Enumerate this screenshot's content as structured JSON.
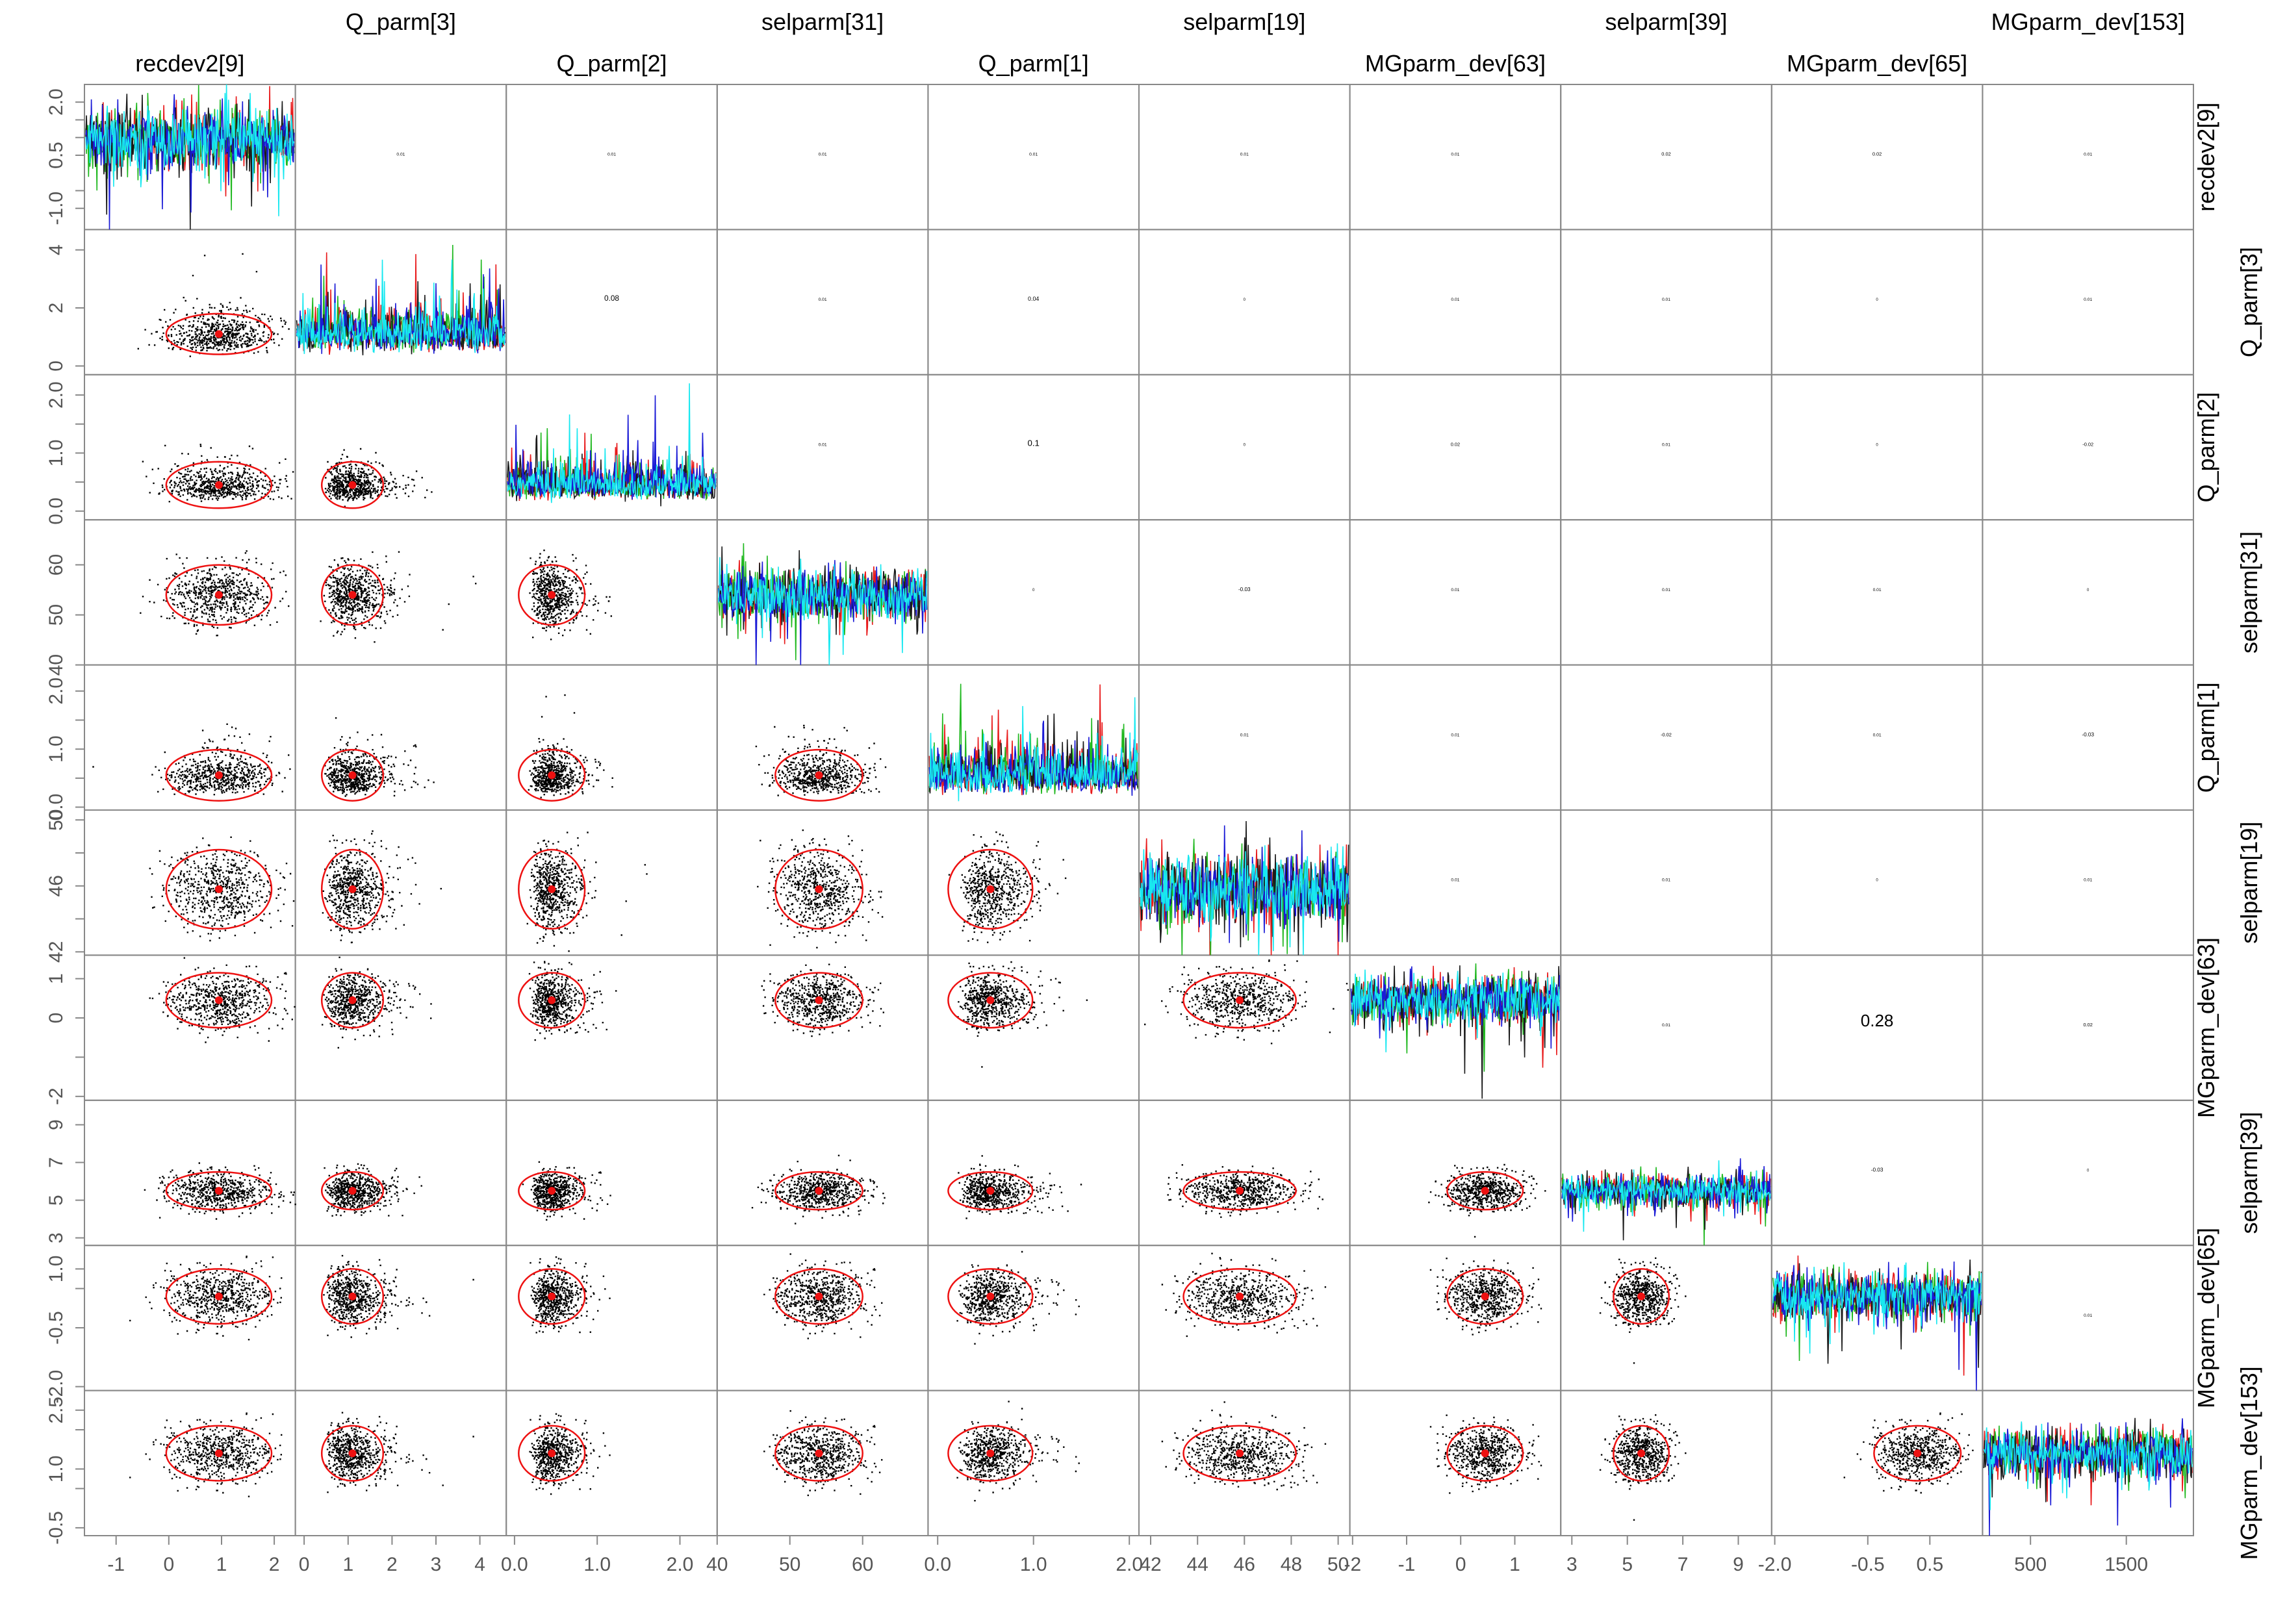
{
  "chart_data": {
    "type": "scatter",
    "title": "",
    "variables": [
      "recdev2[9]",
      "Q_parm[3]",
      "Q_parm[2]",
      "selparm[31]",
      "Q_parm[1]",
      "selparm[19]",
      "MGparm_dev[63]",
      "selparm[39]",
      "MGparm_dev[65]",
      "MGparm_dev[153]"
    ],
    "top_labels_upper_row": [
      "Q_parm[3]",
      "selparm[31]",
      "selparm[19]",
      "selparm[39]",
      "MGparm_dev[153]"
    ],
    "top_labels_lower_row": [
      "recdev2[9]",
      "Q_parm[2]",
      "Q_parm[1]",
      "MGparm_dev[63]",
      "MGparm_dev[65]"
    ],
    "right_labels": [
      "recdev2[9]",
      "Q_parm[3]",
      "Q_parm[2]",
      "selparm[31]",
      "Q_parm[1]",
      "selparm[19]",
      "MGparm_dev[63]",
      "selparm[39]",
      "MGparm_dev[65]",
      "MGparm_dev[153]"
    ],
    "x_axis_ticks": [
      {
        "ticks": [
          "-1",
          "0",
          "1",
          "2"
        ],
        "values": [
          -1,
          0,
          1,
          2
        ],
        "range": [
          -1.6,
          2.4
        ]
      },
      {
        "ticks": [
          "0",
          "1",
          "2",
          "3",
          "4"
        ],
        "values": [
          0,
          1,
          2,
          3,
          4
        ],
        "range": [
          -0.2,
          4.6
        ]
      },
      {
        "ticks": [
          "0.0",
          "1.0",
          "2.0"
        ],
        "values": [
          0,
          1,
          2
        ],
        "range": [
          -0.1,
          2.45
        ]
      },
      {
        "ticks": [
          "40",
          "50",
          "60"
        ],
        "values": [
          40,
          50,
          60
        ],
        "range": [
          40,
          69
        ]
      },
      {
        "ticks": [
          "0.0",
          "1.0",
          "2.0"
        ],
        "values": [
          0,
          1,
          2
        ],
        "range": [
          -0.1,
          2.1
        ]
      },
      {
        "ticks": [
          "42",
          "44",
          "46",
          "48",
          "50"
        ],
        "values": [
          42,
          44,
          46,
          48,
          50
        ],
        "range": [
          41.5,
          50.5
        ]
      },
      {
        "ticks": [
          "-2",
          "-1",
          "0",
          "1"
        ],
        "values": [
          -2,
          -1,
          0,
          1
        ],
        "range": [
          -2.05,
          1.85
        ]
      },
      {
        "ticks": [
          "3",
          "5",
          "7",
          "9"
        ],
        "values": [
          3,
          5,
          7,
          9
        ],
        "range": [
          2.6,
          10.2
        ]
      },
      {
        "ticks": [
          "-2.0",
          "-0.5",
          "0.5"
        ],
        "values": [
          -2,
          -0.5,
          0.5
        ],
        "range": [
          -2.05,
          1.35
        ]
      },
      {
        "ticks": [
          "500",
          "1500"
        ],
        "values": [
          500,
          1500
        ],
        "range": [
          0,
          2200
        ]
      }
    ],
    "y_axis_ticks": [
      {
        "ticks": [
          "-1.0",
          "0.5",
          "2.0"
        ],
        "values": [
          -1,
          0.5,
          2
        ],
        "minor": [
          -0.5,
          1.0,
          1.5
        ],
        "range": [
          -1.6,
          2.5
        ]
      },
      {
        "ticks": [
          "0",
          "2",
          "4"
        ],
        "values": [
          0,
          2,
          4
        ],
        "range": [
          -0.3,
          4.7
        ]
      },
      {
        "ticks": [
          "0.0",
          "1.0",
          "2.0"
        ],
        "values": [
          0,
          1,
          2
        ],
        "minor": [
          0.5,
          1.5
        ],
        "range": [
          -0.15,
          2.35
        ]
      },
      {
        "ticks": [
          "40",
          "50",
          "60"
        ],
        "values": [
          40,
          50,
          60
        ],
        "range": [
          40,
          69
        ]
      },
      {
        "ticks": [
          "0.0",
          "1.0",
          "2.0"
        ],
        "values": [
          0,
          1,
          2
        ],
        "minor": [
          0.5,
          1.5
        ],
        "range": [
          -0.05,
          2.45
        ]
      },
      {
        "ticks": [
          "42",
          "46",
          "50"
        ],
        "values": [
          42,
          46,
          50
        ],
        "minor": [
          44,
          48
        ],
        "range": [
          41.8,
          50.6
        ]
      },
      {
        "ticks": [
          "-2",
          "0",
          "1"
        ],
        "values": [
          -2,
          0,
          1
        ],
        "minor": [
          -1
        ],
        "range": [
          -2.1,
          1.6
        ]
      },
      {
        "ticks": [
          "3",
          "5",
          "7",
          "9"
        ],
        "values": [
          3,
          5,
          7,
          9
        ],
        "range": [
          2.6,
          10.3
        ]
      },
      {
        "ticks": [
          "-2.0",
          "-0.5",
          "1.0"
        ],
        "values": [
          -2,
          -0.5,
          1
        ],
        "minor": [
          0.5
        ],
        "range": [
          -2.1,
          1.6
        ]
      },
      {
        "ticks": [
          "-0.5",
          "1.0",
          "2.5"
        ],
        "values": [
          -0.5,
          1,
          2.5
        ],
        "minor": [
          0.5,
          2.0
        ],
        "range": [
          -0.7,
          3.0
        ]
      }
    ],
    "variable_stats": [
      {
        "name": "recdev2[9]",
        "mean": 0.95,
        "sd": 0.5
      },
      {
        "name": "Q_parm[3]",
        "mean": 1.1,
        "sd": 0.35
      },
      {
        "name": "Q_parm[2]",
        "mean": 0.45,
        "sd": 0.2
      },
      {
        "name": "selparm[31]",
        "mean": 54,
        "sd": 3
      },
      {
        "name": "Q_parm[1]",
        "mean": 0.55,
        "sd": 0.22
      },
      {
        "name": "selparm[19]",
        "mean": 45.8,
        "sd": 1.2
      },
      {
        "name": "MGparm_dev[63]",
        "mean": 0.45,
        "sd": 0.35
      },
      {
        "name": "selparm[39]",
        "mean": 5.5,
        "sd": 0.5
      },
      {
        "name": "MGparm_dev[65]",
        "mean": 0.3,
        "sd": 0.35
      },
      {
        "name": "MGparm_dev[153]",
        "mean": 1.4,
        "sd": 0.35
      }
    ],
    "correlations": [
      {
        "row": 1,
        "col": 2,
        "value": "0.01"
      },
      {
        "row": 1,
        "col": 3,
        "value": "0.01"
      },
      {
        "row": 1,
        "col": 4,
        "value": "0.01"
      },
      {
        "row": 1,
        "col": 5,
        "value": "0.01"
      },
      {
        "row": 1,
        "col": 6,
        "value": "0.01"
      },
      {
        "row": 1,
        "col": 7,
        "value": "0.01"
      },
      {
        "row": 1,
        "col": 8,
        "value": "0.02"
      },
      {
        "row": 1,
        "col": 9,
        "value": "0.02"
      },
      {
        "row": 1,
        "col": 10,
        "value": "0.01"
      },
      {
        "row": 2,
        "col": 3,
        "value": "0.08"
      },
      {
        "row": 2,
        "col": 4,
        "value": "0.01"
      },
      {
        "row": 2,
        "col": 5,
        "value": "0.04"
      },
      {
        "row": 2,
        "col": 6,
        "value": "0"
      },
      {
        "row": 2,
        "col": 7,
        "value": "0.01"
      },
      {
        "row": 2,
        "col": 8,
        "value": "0.01"
      },
      {
        "row": 2,
        "col": 9,
        "value": "0"
      },
      {
        "row": 2,
        "col": 10,
        "value": "0.01"
      },
      {
        "row": 3,
        "col": 4,
        "value": "0.01"
      },
      {
        "row": 3,
        "col": 5,
        "value": "0.1"
      },
      {
        "row": 3,
        "col": 6,
        "value": "0"
      },
      {
        "row": 3,
        "col": 7,
        "value": "0.02"
      },
      {
        "row": 3,
        "col": 8,
        "value": "0.01"
      },
      {
        "row": 3,
        "col": 9,
        "value": "0"
      },
      {
        "row": 3,
        "col": 10,
        "value": "-0.02"
      },
      {
        "row": 4,
        "col": 5,
        "value": "0"
      },
      {
        "row": 4,
        "col": 6,
        "value": "-0.03"
      },
      {
        "row": 4,
        "col": 7,
        "value": "0.01"
      },
      {
        "row": 4,
        "col": 8,
        "value": "0.01"
      },
      {
        "row": 4,
        "col": 9,
        "value": "0.01"
      },
      {
        "row": 4,
        "col": 10,
        "value": "0"
      },
      {
        "row": 5,
        "col": 6,
        "value": "0.01"
      },
      {
        "row": 5,
        "col": 7,
        "value": "0.01"
      },
      {
        "row": 5,
        "col": 8,
        "value": "-0.02"
      },
      {
        "row": 5,
        "col": 9,
        "value": "0.01"
      },
      {
        "row": 5,
        "col": 10,
        "value": "-0.03"
      },
      {
        "row": 6,
        "col": 7,
        "value": "0.01"
      },
      {
        "row": 6,
        "col": 8,
        "value": "0.01"
      },
      {
        "row": 6,
        "col": 9,
        "value": "0"
      },
      {
        "row": 6,
        "col": 10,
        "value": "0.01"
      },
      {
        "row": 7,
        "col": 8,
        "value": "0.01"
      },
      {
        "row": 7,
        "col": 9,
        "value": "0.28"
      },
      {
        "row": 7,
        "col": 10,
        "value": "0.02"
      },
      {
        "row": 8,
        "col": 9,
        "value": "-0.03"
      },
      {
        "row": 8,
        "col": 10,
        "value": "0"
      },
      {
        "row": 9,
        "col": 10,
        "value": "0.01"
      }
    ],
    "trace_colors": [
      "#1a1a1a",
      "#e8191a",
      "#1fb81f",
      "#1a1ad6",
      "#18e8f0"
    ],
    "point_color": "#000000",
    "ellipse_color": "#ee1111",
    "mean_marker_color": "#ee1111",
    "frame_color": "#888888"
  }
}
